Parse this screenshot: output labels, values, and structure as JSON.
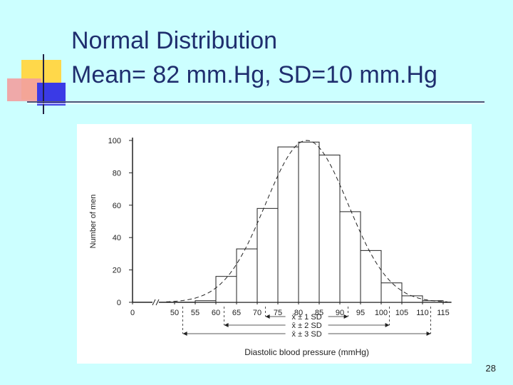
{
  "slide": {
    "title_line1": "Normal Distribution",
    "title_line2": "Mean= 82 mm.Hg, SD=10 mm.Hg",
    "page_number": "28"
  },
  "colors": {
    "background": "#ccffff",
    "title": "#1f2e6e",
    "chart_panel": "#ffffff",
    "ink": "#222222",
    "deco_yellow": "#ffd84a",
    "deco_blue": "#3a3ae6",
    "deco_pink": "#f3a0a0"
  },
  "chart_data": {
    "type": "bar",
    "title": "",
    "xlabel": "Diastolic blood pressure (mmHg)",
    "ylabel": "Number of men",
    "yticks": [
      0,
      20,
      40,
      60,
      80,
      100
    ],
    "ylim": [
      0,
      100
    ],
    "xticks": [
      "0",
      "50",
      "55",
      "60",
      "65",
      "70",
      "75",
      "80",
      "85",
      "90",
      "95",
      "100",
      "105",
      "110",
      "115"
    ],
    "axis_break": true,
    "bins": [
      {
        "from": 55,
        "to": 60,
        "value": 1
      },
      {
        "from": 60,
        "to": 65,
        "value": 16
      },
      {
        "from": 65,
        "to": 70,
        "value": 33
      },
      {
        "from": 70,
        "to": 75,
        "value": 58
      },
      {
        "from": 75,
        "to": 80,
        "value": 96
      },
      {
        "from": 80,
        "to": 85,
        "value": 99
      },
      {
        "from": 85,
        "to": 90,
        "value": 91
      },
      {
        "from": 90,
        "to": 95,
        "value": 56
      },
      {
        "from": 95,
        "to": 100,
        "value": 32
      },
      {
        "from": 100,
        "to": 105,
        "value": 12
      },
      {
        "from": 105,
        "to": 110,
        "value": 4
      },
      {
        "from": 110,
        "to": 115,
        "value": 1
      }
    ],
    "normal_curve": {
      "mean": 82,
      "sd": 10,
      "peak": 100
    },
    "sd_ranges": [
      {
        "label": "x̄ ± 1 SD",
        "from": 72,
        "to": 92
      },
      {
        "label": "x̄ ± 2 SD",
        "from": 62,
        "to": 102
      },
      {
        "label": "x̄ ± 3 SD",
        "from": 52,
        "to": 112
      }
    ]
  }
}
